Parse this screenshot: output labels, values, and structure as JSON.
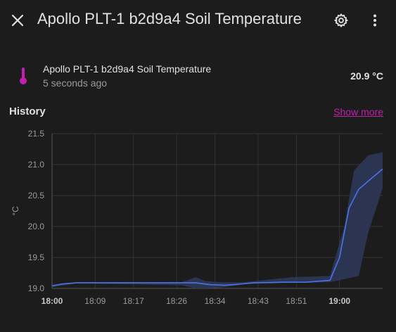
{
  "dialog": {
    "title": "Apollo PLT-1 b2d9a4 Soil Temperature",
    "icons": {
      "close": "close-icon",
      "settings": "gear-icon",
      "more": "more-vertical-icon"
    }
  },
  "entity": {
    "name": "Apollo PLT-1 b2d9a4 Soil Temperature",
    "last_changed": "5 seconds ago",
    "state": "20.9 °C",
    "icon": "thermometer-icon",
    "icon_color": "#c21fb0"
  },
  "history": {
    "title": "History",
    "show_more": "Show more"
  },
  "chart_data": {
    "type": "line",
    "ylabel": "°C",
    "ylim": [
      19.0,
      21.5
    ],
    "yticks": [
      "21.5",
      "21.0",
      "20.5",
      "20.0",
      "19.5",
      "19.0"
    ],
    "xticks": [
      {
        "label": "18:00",
        "minute": 0,
        "bold": true
      },
      {
        "label": "18:09",
        "minute": 9,
        "bold": false
      },
      {
        "label": "18:17",
        "minute": 17,
        "bold": false
      },
      {
        "label": "18:26",
        "minute": 26,
        "bold": false
      },
      {
        "label": "18:34",
        "minute": 34,
        "bold": false
      },
      {
        "label": "18:43",
        "minute": 43,
        "bold": false
      },
      {
        "label": "18:51",
        "minute": 51,
        "bold": false
      },
      {
        "label": "19:00",
        "minute": 60,
        "bold": true
      }
    ],
    "xlim_minutes": [
      0,
      69
    ],
    "line_color": "#4c72e8",
    "band_color": "#2e3a5c",
    "series": [
      {
        "mean": [
          [
            0,
            19.04
          ],
          [
            2,
            19.07
          ],
          [
            5,
            19.09
          ],
          [
            10,
            19.09
          ],
          [
            20,
            19.09
          ],
          [
            27,
            19.09
          ],
          [
            30,
            19.09
          ],
          [
            33,
            19.06
          ],
          [
            36,
            19.05
          ],
          [
            38,
            19.06
          ],
          [
            42,
            19.09
          ],
          [
            48,
            19.1
          ],
          [
            53,
            19.1
          ],
          [
            58,
            19.13
          ],
          [
            60,
            19.5
          ],
          [
            62,
            20.3
          ],
          [
            64,
            20.6
          ],
          [
            67,
            20.8
          ],
          [
            69,
            20.93
          ]
        ],
        "max": [
          [
            0,
            19.06
          ],
          [
            5,
            19.1
          ],
          [
            27,
            19.1
          ],
          [
            30,
            19.18
          ],
          [
            32,
            19.12
          ],
          [
            35,
            19.1
          ],
          [
            40,
            19.1
          ],
          [
            50,
            19.18
          ],
          [
            58,
            19.2
          ],
          [
            61,
            20.0
          ],
          [
            63,
            20.9
          ],
          [
            66,
            21.15
          ],
          [
            69,
            21.2
          ]
        ],
        "min": [
          [
            0,
            19.02
          ],
          [
            5,
            19.08
          ],
          [
            27,
            19.05
          ],
          [
            30,
            19.0
          ],
          [
            33,
            19.0
          ],
          [
            36,
            19.02
          ],
          [
            40,
            19.07
          ],
          [
            50,
            19.09
          ],
          [
            58,
            19.1
          ],
          [
            64,
            19.2
          ],
          [
            66,
            19.9
          ],
          [
            69,
            20.62
          ]
        ]
      }
    ]
  }
}
